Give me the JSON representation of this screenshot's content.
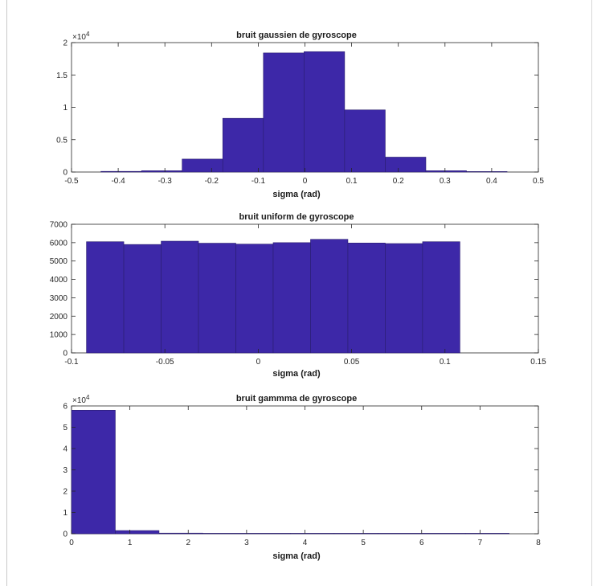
{
  "colors": {
    "bar_fill": "#3d28a8",
    "bar_edge": "#2a1d6e",
    "axis": "#262626",
    "text": "#262626",
    "background": "#ffffff"
  },
  "chart_data": [
    {
      "type": "bar",
      "title": "bruit gaussien de gyroscope",
      "xlabel": "sigma (rad)",
      "ylabel": "",
      "exponent_label": "×10",
      "exponent_power": "4",
      "xlim": [
        -0.5,
        0.5
      ],
      "ylim": [
        0,
        2
      ],
      "xticks": [
        "-0.5",
        "-0.4",
        "-0.3",
        "-0.2",
        "-0.1",
        "0",
        "0.1",
        "0.2",
        "0.3",
        "0.4",
        "0.5"
      ],
      "yticks": [
        "0",
        "0.5",
        "1",
        "1.5",
        "2"
      ],
      "bins": [
        {
          "x0": -0.437,
          "x1": -0.35,
          "value": 0.01
        },
        {
          "x0": -0.35,
          "x1": -0.263,
          "value": 0.02
        },
        {
          "x0": -0.263,
          "x1": -0.176,
          "value": 0.2
        },
        {
          "x0": -0.176,
          "x1": -0.089,
          "value": 0.83
        },
        {
          "x0": -0.089,
          "x1": -0.002,
          "value": 1.84
        },
        {
          "x0": -0.002,
          "x1": 0.085,
          "value": 1.86
        },
        {
          "x0": 0.085,
          "x1": 0.172,
          "value": 0.96
        },
        {
          "x0": 0.172,
          "x1": 0.259,
          "value": 0.23
        },
        {
          "x0": 0.259,
          "x1": 0.346,
          "value": 0.02
        },
        {
          "x0": 0.346,
          "x1": 0.433,
          "value": 0.005
        }
      ]
    },
    {
      "type": "bar",
      "title": "bruit uniform de gyroscope",
      "xlabel": "sigma (rad)",
      "ylabel": "",
      "exponent_label": "",
      "exponent_power": "",
      "xlim": [
        -0.1,
        0.15
      ],
      "ylim": [
        0,
        7000
      ],
      "xticks": [
        "-0.1",
        "-0.05",
        "0",
        "0.05",
        "0.1",
        "0.15"
      ],
      "yticks": [
        "0",
        "1000",
        "2000",
        "3000",
        "4000",
        "5000",
        "6000",
        "7000"
      ],
      "bins": [
        {
          "x0": -0.092,
          "x1": -0.072,
          "value": 6050
        },
        {
          "x0": -0.072,
          "x1": -0.052,
          "value": 5900
        },
        {
          "x0": -0.052,
          "x1": -0.032,
          "value": 6080
        },
        {
          "x0": -0.032,
          "x1": -0.012,
          "value": 5970
        },
        {
          "x0": -0.012,
          "x1": 0.008,
          "value": 5920
        },
        {
          "x0": 0.008,
          "x1": 0.028,
          "value": 6000
        },
        {
          "x0": 0.028,
          "x1": 0.048,
          "value": 6180
        },
        {
          "x0": 0.048,
          "x1": 0.068,
          "value": 5980
        },
        {
          "x0": 0.068,
          "x1": 0.088,
          "value": 5950
        },
        {
          "x0": 0.088,
          "x1": 0.108,
          "value": 6050
        }
      ]
    },
    {
      "type": "bar",
      "title": "bruit gammma de gyroscope",
      "xlabel": "sigma (rad)",
      "ylabel": "",
      "exponent_label": "×10",
      "exponent_power": "4",
      "xlim": [
        0,
        8
      ],
      "ylim": [
        0,
        6
      ],
      "xticks": [
        "0",
        "1",
        "2",
        "3",
        "4",
        "5",
        "6",
        "7",
        "8"
      ],
      "yticks": [
        "0",
        "1",
        "2",
        "3",
        "4",
        "5",
        "6"
      ],
      "bins": [
        {
          "x0": 0,
          "x1": 0.75,
          "value": 5.8
        },
        {
          "x0": 0.75,
          "x1": 1.5,
          "value": 0.15
        },
        {
          "x0": 1.5,
          "x1": 2.25,
          "value": 0.03
        },
        {
          "x0": 2.25,
          "x1": 3.0,
          "value": 0.01
        },
        {
          "x0": 3.0,
          "x1": 3.75,
          "value": 0.004
        },
        {
          "x0": 3.75,
          "x1": 4.5,
          "value": 0.002
        },
        {
          "x0": 4.5,
          "x1": 5.25,
          "value": 0.001
        },
        {
          "x0": 5.25,
          "x1": 6.0,
          "value": 0.001
        },
        {
          "x0": 6.0,
          "x1": 6.75,
          "value": 0.001
        },
        {
          "x0": 6.75,
          "x1": 7.5,
          "value": 0.001
        }
      ]
    }
  ]
}
